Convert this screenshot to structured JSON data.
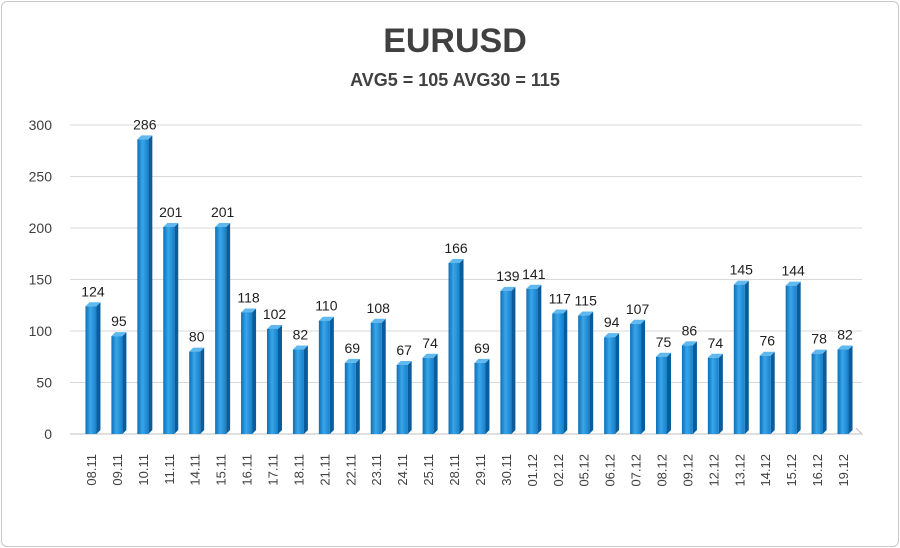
{
  "chart_data": {
    "type": "bar",
    "title": "EURUSD",
    "subtitle": "AVG5 = 105 AVG30 = 115",
    "categories": [
      "08.11",
      "09.11",
      "10.11",
      "11.11",
      "14.11",
      "15.11",
      "16.11",
      "17.11",
      "18.11",
      "21.11",
      "22.11",
      "23.11",
      "24.11",
      "25.11",
      "28.11",
      "29.11",
      "30.11",
      "01.12",
      "02.12",
      "05.12",
      "06.12",
      "07.12",
      "08.12",
      "09.12",
      "12.12",
      "13.12",
      "14.12",
      "15.12",
      "16.12",
      "19.12"
    ],
    "values": [
      124,
      95,
      286,
      201,
      80,
      201,
      118,
      102,
      82,
      110,
      69,
      108,
      67,
      74,
      166,
      69,
      139,
      141,
      117,
      115,
      94,
      107,
      75,
      86,
      74,
      145,
      76,
      144,
      78,
      82
    ],
    "ylim": [
      0,
      300
    ],
    "yticks": [
      0,
      50,
      100,
      150,
      200,
      250,
      300
    ],
    "xlabel": "",
    "ylabel": "",
    "grid": true,
    "bar_color": "#1a8ad4"
  }
}
